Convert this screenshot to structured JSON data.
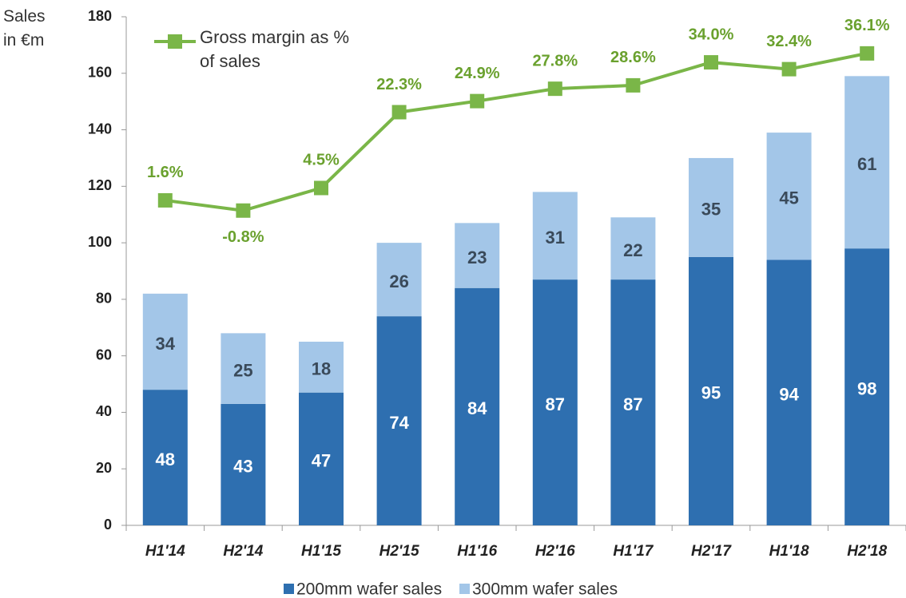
{
  "chart_data": {
    "type": "stacked-bar-line",
    "ylabel": "Sales in €m",
    "categories": [
      "H1'14",
      "H2'14",
      "H1'15",
      "H2'15",
      "H1'16",
      "H2'16",
      "H1'17",
      "H2'17",
      "H1'18",
      "H2'18"
    ],
    "series": [
      {
        "name": "200mm wafer sales",
        "color": "#2e6fb0",
        "type": "bar",
        "values": [
          48,
          43,
          47,
          74,
          84,
          87,
          87,
          95,
          94,
          98
        ]
      },
      {
        "name": "300mm wafer sales",
        "color": "#a3c6e8",
        "type": "bar",
        "values": [
          34,
          25,
          18,
          26,
          23,
          31,
          22,
          35,
          45,
          61
        ]
      },
      {
        "name": "Gross margin as % of sales",
        "color": "#7ab648",
        "type": "line",
        "axis": "y2",
        "values": [
          1.6,
          -0.8,
          4.5,
          22.3,
          24.9,
          27.8,
          28.6,
          34.0,
          32.4,
          36.1
        ],
        "value_labels": [
          "1.6%",
          "-0.8%",
          "4.5%",
          "22.3%",
          "24.9%",
          "27.8%",
          "28.6%",
          "34.0%",
          "32.4%",
          "36.1%"
        ]
      }
    ],
    "ylim": [
      0,
      180
    ],
    "yticks": [
      0,
      20,
      40,
      60,
      80,
      100,
      120,
      140,
      160,
      180
    ],
    "y2lim": [
      -74.7,
      44.7
    ]
  }
}
